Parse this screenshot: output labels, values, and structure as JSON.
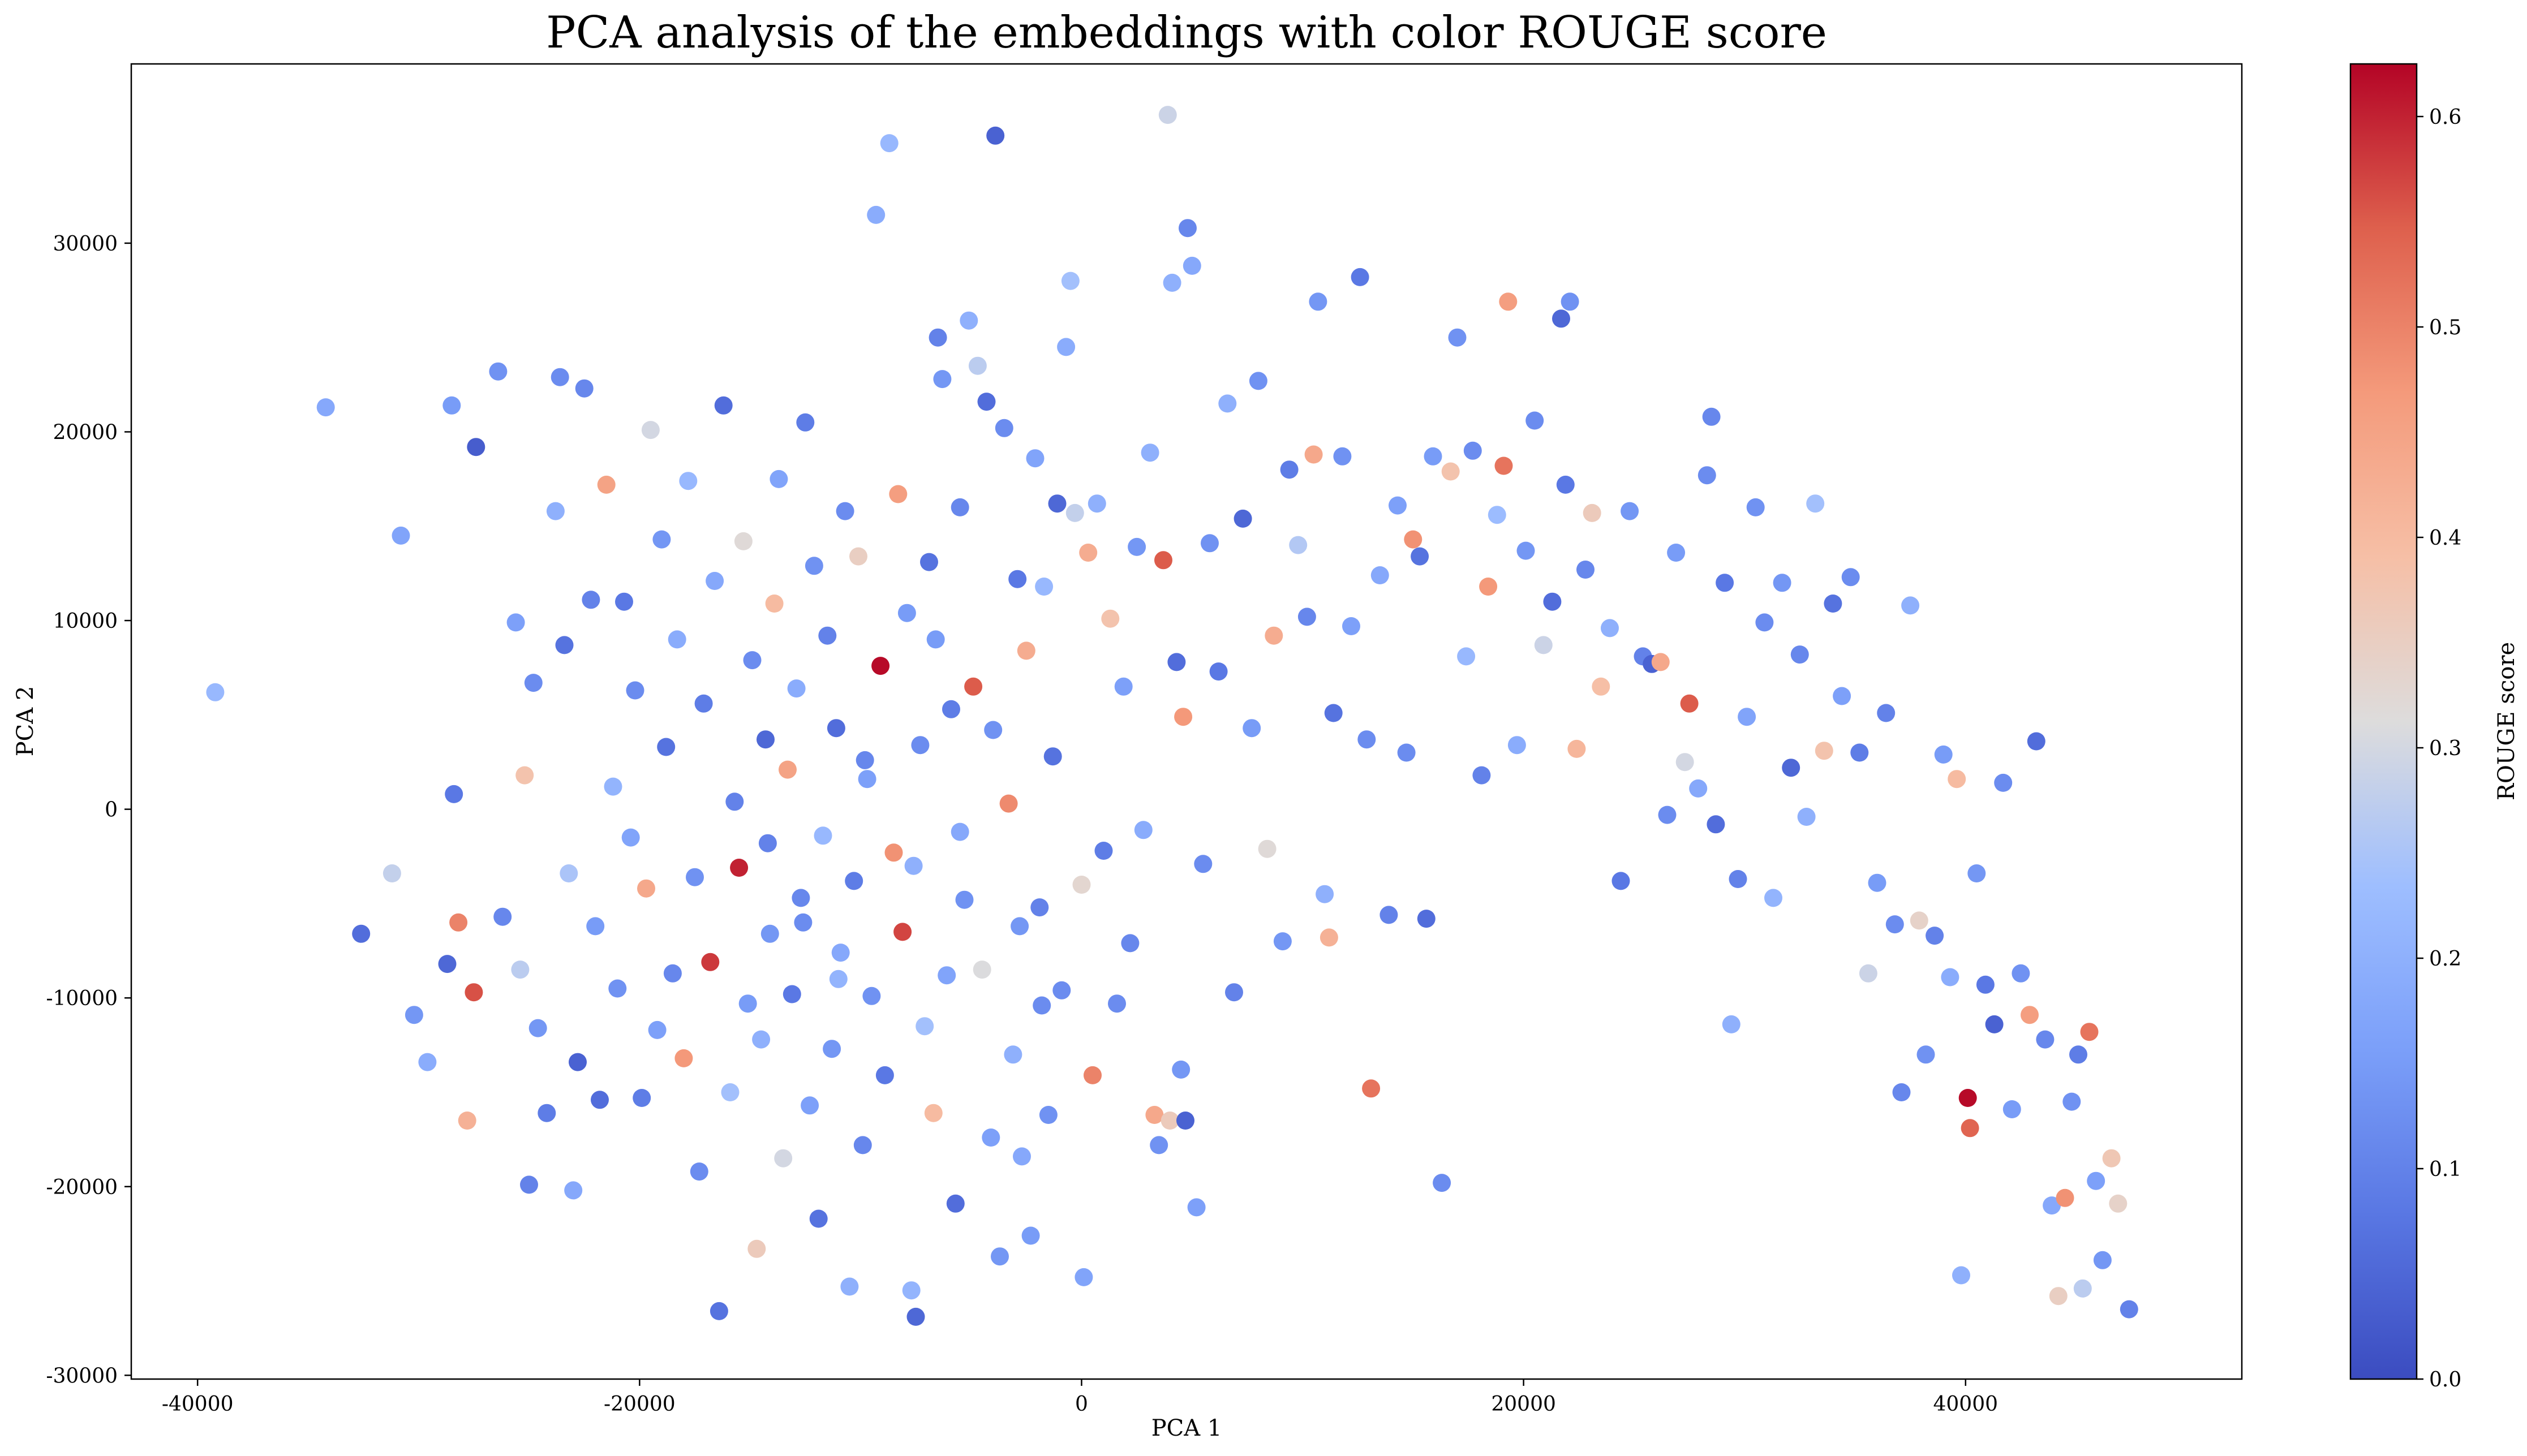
{
  "chart_data": {
    "type": "scatter",
    "title": "PCA analysis of the embeddings with color ROUGE score",
    "xlabel": "PCA 1",
    "ylabel": "PCA 2",
    "xlim": [
      -43000,
      52500
    ],
    "ylim": [
      -30200,
      39500
    ],
    "xticks": [
      -40000,
      -20000,
      0,
      20000,
      40000
    ],
    "xtick_labels": [
      "-40000",
      "-20000",
      "0",
      "20000",
      "40000"
    ],
    "yticks": [
      -30000,
      -20000,
      -10000,
      0,
      10000,
      20000,
      30000
    ],
    "ytick_labels": [
      "-30000",
      "-20000",
      "-10000",
      "0",
      "10000",
      "20000",
      "30000"
    ],
    "colorbar": {
      "label": "ROUGE score",
      "range": [
        0.0,
        0.625
      ],
      "colormap": "coolwarm",
      "ticks": [
        0.0,
        0.1,
        0.2,
        0.3,
        0.4,
        0.5,
        0.6
      ],
      "tick_labels": [
        "0.0",
        "0.1",
        "0.2",
        "0.3",
        "0.4",
        "0.5",
        "0.6"
      ]
    },
    "grid": false,
    "legend": "none",
    "points": [
      [
        -39200,
        6200,
        0.22
      ],
      [
        -34200,
        21300,
        0.18
      ],
      [
        -32600,
        -6600,
        0.06
      ],
      [
        -31200,
        -3400,
        0.28
      ],
      [
        -30800,
        14500,
        0.17
      ],
      [
        -30200,
        -10900,
        0.14
      ],
      [
        -29600,
        -13400,
        0.19
      ],
      [
        -28700,
        -8200,
        0.05
      ],
      [
        -28500,
        21400,
        0.15
      ],
      [
        -28400,
        800,
        0.08
      ],
      [
        -28200,
        -6000,
        0.5
      ],
      [
        -27800,
        -16500,
        0.42
      ],
      [
        -27500,
        -9700,
        0.56
      ],
      [
        -27400,
        19200,
        0.03
      ],
      [
        -26400,
        23200,
        0.13
      ],
      [
        -26200,
        -5700,
        0.11
      ],
      [
        -25600,
        9900,
        0.16
      ],
      [
        -25400,
        -8500,
        0.27
      ],
      [
        -25200,
        1800,
        0.38
      ],
      [
        -25000,
        -19900,
        0.1
      ],
      [
        -24800,
        6700,
        0.12
      ],
      [
        -24600,
        -11600,
        0.14
      ],
      [
        -24200,
        -16100,
        0.09
      ],
      [
        -23800,
        15800,
        0.2
      ],
      [
        -23600,
        22900,
        0.12
      ],
      [
        -23400,
        8700,
        0.07
      ],
      [
        -23200,
        -3400,
        0.25
      ],
      [
        -23000,
        -20200,
        0.18
      ],
      [
        -22800,
        -13400,
        0.04
      ],
      [
        -22500,
        22300,
        0.11
      ],
      [
        -22200,
        11100,
        0.1
      ],
      [
        -22000,
        -6200,
        0.15
      ],
      [
        -21800,
        -15400,
        0.06
      ],
      [
        -21500,
        17200,
        0.45
      ],
      [
        -21200,
        1200,
        0.21
      ],
      [
        -21000,
        -9500,
        0.13
      ],
      [
        -20700,
        11000,
        0.08
      ],
      [
        -20400,
        -1500,
        0.17
      ],
      [
        -20200,
        6300,
        0.12
      ],
      [
        -19900,
        -15300,
        0.09
      ],
      [
        -19700,
        -4200,
        0.44
      ],
      [
        -19500,
        20100,
        0.3
      ],
      [
        -19200,
        -11700,
        0.16
      ],
      [
        -19000,
        14300,
        0.14
      ],
      [
        -18800,
        3300,
        0.07
      ],
      [
        -18500,
        -8700,
        0.11
      ],
      [
        -18300,
        9000,
        0.19
      ],
      [
        -18000,
        -13200,
        0.47
      ],
      [
        -17800,
        17400,
        0.22
      ],
      [
        -17500,
        -3600,
        0.13
      ],
      [
        -17300,
        -19200,
        0.12
      ],
      [
        -17100,
        5600,
        0.09
      ],
      [
        -16800,
        -8100,
        0.58
      ],
      [
        -16600,
        12100,
        0.18
      ],
      [
        -16400,
        -26600,
        0.07
      ],
      [
        -16200,
        21400,
        0.06
      ],
      [
        -15900,
        -15000,
        0.24
      ],
      [
        -15700,
        400,
        0.1
      ],
      [
        -15500,
        -3100,
        0.6
      ],
      [
        -15300,
        14200,
        0.32
      ],
      [
        -15100,
        -10300,
        0.15
      ],
      [
        -14900,
        7900,
        0.12
      ],
      [
        -14700,
        -23300,
        0.36
      ],
      [
        -14500,
        -12200,
        0.2
      ],
      [
        -14300,
        3700,
        0.05
      ],
      [
        -14100,
        -6600,
        0.14
      ],
      [
        -13900,
        10900,
        0.4
      ],
      [
        -13700,
        17500,
        0.17
      ],
      [
        -13500,
        -18500,
        0.3
      ],
      [
        -13300,
        2100,
        0.45
      ],
      [
        -13100,
        -9800,
        0.08
      ],
      [
        -12900,
        6400,
        0.19
      ],
      [
        -12700,
        -4700,
        0.11
      ],
      [
        -12500,
        20500,
        0.09
      ],
      [
        -12300,
        -15700,
        0.16
      ],
      [
        -12100,
        12900,
        0.13
      ],
      [
        -11900,
        -21700,
        0.07
      ],
      [
        -11700,
        -1400,
        0.22
      ],
      [
        -11500,
        9200,
        0.1
      ],
      [
        -11300,
        -12700,
        0.14
      ],
      [
        -11100,
        4300,
        0.06
      ],
      [
        -10900,
        -7600,
        0.18
      ],
      [
        -10700,
        15800,
        0.12
      ],
      [
        -10500,
        -25300,
        0.2
      ],
      [
        -10300,
        -3800,
        0.09
      ],
      [
        -10100,
        13400,
        0.35
      ],
      [
        -9900,
        -17800,
        0.11
      ],
      [
        -9700,
        1600,
        0.16
      ],
      [
        -9500,
        -9900,
        0.13
      ],
      [
        -9300,
        31500,
        0.19
      ],
      [
        -9100,
        7600,
        0.62
      ],
      [
        -8900,
        -14100,
        0.08
      ],
      [
        -8700,
        35300,
        0.22
      ],
      [
        -8500,
        -2300,
        0.48
      ],
      [
        -8300,
        16700,
        0.46
      ],
      [
        -8100,
        -6500,
        0.57
      ],
      [
        -7900,
        10400,
        0.15
      ],
      [
        -7700,
        -25500,
        0.21
      ],
      [
        -7500,
        -26900,
        0.05
      ],
      [
        -7300,
        3400,
        0.12
      ],
      [
        -7100,
        -11500,
        0.24
      ],
      [
        -6900,
        13100,
        0.07
      ],
      [
        -6700,
        -16100,
        0.4
      ],
      [
        -6500,
        25000,
        0.1
      ],
      [
        -6300,
        22800,
        0.14
      ],
      [
        -6100,
        -8800,
        0.17
      ],
      [
        -5900,
        5300,
        0.09
      ],
      [
        -5700,
        -20900,
        0.06
      ],
      [
        -5500,
        16000,
        0.11
      ],
      [
        -5300,
        -4800,
        0.13
      ],
      [
        -5100,
        25900,
        0.2
      ],
      [
        -4900,
        6500,
        0.55
      ],
      [
        -4700,
        23500,
        0.27
      ],
      [
        -4500,
        -8500,
        0.31
      ],
      [
        -4300,
        21600,
        0.06
      ],
      [
        -4100,
        -17400,
        0.16
      ],
      [
        -3900,
        35700,
        0.04
      ],
      [
        -3700,
        -23700,
        0.14
      ],
      [
        -3500,
        20200,
        0.12
      ],
      [
        -3300,
        300,
        0.49
      ],
      [
        -3100,
        -13000,
        0.2
      ],
      [
        -2900,
        12200,
        0.08
      ],
      [
        -2700,
        -18400,
        0.18
      ],
      [
        -2500,
        8400,
        0.43
      ],
      [
        -2300,
        -22600,
        0.15
      ],
      [
        -2100,
        18600,
        0.17
      ],
      [
        -1900,
        -5200,
        0.1
      ],
      [
        -1700,
        11800,
        0.22
      ],
      [
        -1500,
        -16200,
        0.13
      ],
      [
        -1300,
        2800,
        0.07
      ],
      [
        -1100,
        16200,
        0.05
      ],
      [
        -900,
        -9600,
        0.12
      ],
      [
        -700,
        24500,
        0.19
      ],
      [
        -500,
        28000,
        0.24
      ],
      [
        -300,
        15700,
        0.28
      ],
      [
        0,
        -4000,
        0.33
      ],
      [
        100,
        -24800,
        0.17
      ],
      [
        300,
        13600,
        0.43
      ],
      [
        500,
        -14100,
        0.5
      ],
      [
        700,
        16200,
        0.2
      ],
      [
        1000,
        -2200,
        0.09
      ],
      [
        1300,
        10100,
        0.38
      ],
      [
        1600,
        -10300,
        0.12
      ],
      [
        1900,
        6500,
        0.16
      ],
      [
        2200,
        -7100,
        0.11
      ],
      [
        2500,
        13900,
        0.14
      ],
      [
        2800,
        -1100,
        0.19
      ],
      [
        3100,
        18900,
        0.2
      ],
      [
        3300,
        -16200,
        0.44
      ],
      [
        3500,
        -17800,
        0.13
      ],
      [
        3700,
        13200,
        0.55
      ],
      [
        3900,
        36800,
        0.29
      ],
      [
        4000,
        -16500,
        0.36
      ],
      [
        4100,
        27900,
        0.2
      ],
      [
        4300,
        7800,
        0.06
      ],
      [
        4500,
        -13800,
        0.14
      ],
      [
        4600,
        4900,
        0.47
      ],
      [
        4700,
        -16500,
        0.04
      ],
      [
        4800,
        30800,
        0.11
      ],
      [
        5000,
        28800,
        0.18
      ],
      [
        5200,
        -21100,
        0.16
      ],
      [
        5500,
        -2900,
        0.12
      ],
      [
        5800,
        14100,
        0.13
      ],
      [
        6200,
        7300,
        0.08
      ],
      [
        6600,
        21500,
        0.2
      ],
      [
        6900,
        -9700,
        0.1
      ],
      [
        7300,
        15400,
        0.05
      ],
      [
        7700,
        4300,
        0.15
      ],
      [
        8000,
        22700,
        0.13
      ],
      [
        8400,
        -2100,
        0.32
      ],
      [
        8700,
        9200,
        0.43
      ],
      [
        9100,
        -7000,
        0.14
      ],
      [
        9400,
        18000,
        0.09
      ],
      [
        9800,
        14000,
        0.26
      ],
      [
        10200,
        10200,
        0.11
      ],
      [
        10500,
        18800,
        0.44
      ],
      [
        10700,
        26900,
        0.14
      ],
      [
        11000,
        -4500,
        0.2
      ],
      [
        11200,
        -6800,
        0.42
      ],
      [
        11400,
        5100,
        0.07
      ],
      [
        11800,
        18700,
        0.13
      ],
      [
        12200,
        9700,
        0.16
      ],
      [
        12600,
        28200,
        0.08
      ],
      [
        12900,
        3700,
        0.12
      ],
      [
        13100,
        -14800,
        0.52
      ],
      [
        13500,
        12400,
        0.18
      ],
      [
        13900,
        -5600,
        0.1
      ],
      [
        14300,
        16100,
        0.16
      ],
      [
        14700,
        3000,
        0.12
      ],
      [
        15000,
        14300,
        0.48
      ],
      [
        15300,
        13400,
        0.07
      ],
      [
        15600,
        -5800,
        0.06
      ],
      [
        15900,
        18700,
        0.15
      ],
      [
        16300,
        -19800,
        0.12
      ],
      [
        16700,
        17900,
        0.38
      ],
      [
        17000,
        25000,
        0.13
      ],
      [
        17400,
        8100,
        0.22
      ],
      [
        17700,
        19000,
        0.12
      ],
      [
        18100,
        1800,
        0.1
      ],
      [
        18400,
        11800,
        0.47
      ],
      [
        18800,
        15600,
        0.23
      ],
      [
        19100,
        18200,
        0.52
      ],
      [
        19300,
        26900,
        0.46
      ],
      [
        19700,
        3400,
        0.19
      ],
      [
        20100,
        13700,
        0.14
      ],
      [
        20500,
        20600,
        0.12
      ],
      [
        20900,
        8700,
        0.29
      ],
      [
        21300,
        11000,
        0.06
      ],
      [
        21700,
        26000,
        0.05
      ],
      [
        21900,
        17200,
        0.08
      ],
      [
        22100,
        26900,
        0.13
      ],
      [
        22400,
        3200,
        0.41
      ],
      [
        22800,
        12700,
        0.11
      ],
      [
        23100,
        15700,
        0.36
      ],
      [
        23500,
        6500,
        0.39
      ],
      [
        23900,
        9600,
        0.2
      ],
      [
        24400,
        -3800,
        0.08
      ],
      [
        24800,
        15800,
        0.14
      ],
      [
        25400,
        8100,
        0.1
      ],
      [
        25800,
        7700,
        0.04
      ],
      [
        26200,
        7800,
        0.44
      ],
      [
        26500,
        -300,
        0.12
      ],
      [
        26900,
        13600,
        0.15
      ],
      [
        27300,
        2500,
        0.3
      ],
      [
        27500,
        5600,
        0.55
      ],
      [
        27900,
        1100,
        0.18
      ],
      [
        28300,
        17700,
        0.12
      ],
      [
        28500,
        20800,
        0.11
      ],
      [
        28700,
        -800,
        0.06
      ],
      [
        29100,
        12000,
        0.08
      ],
      [
        29400,
        -11400,
        0.2
      ],
      [
        29700,
        -3700,
        0.1
      ],
      [
        30100,
        4900,
        0.17
      ],
      [
        30500,
        16000,
        0.13
      ],
      [
        30900,
        9900,
        0.12
      ],
      [
        31300,
        -4700,
        0.21
      ],
      [
        31700,
        12000,
        0.14
      ],
      [
        32100,
        2200,
        0.05
      ],
      [
        32500,
        8200,
        0.11
      ],
      [
        32800,
        -400,
        0.2
      ],
      [
        33200,
        16200,
        0.24
      ],
      [
        33600,
        3100,
        0.38
      ],
      [
        34000,
        10900,
        0.07
      ],
      [
        34400,
        6000,
        0.16
      ],
      [
        34800,
        12300,
        0.12
      ],
      [
        35200,
        3000,
        0.09
      ],
      [
        35600,
        -8700,
        0.29
      ],
      [
        36000,
        -3900,
        0.15
      ],
      [
        36400,
        5100,
        0.1
      ],
      [
        36800,
        -6100,
        0.12
      ],
      [
        37100,
        -15000,
        0.11
      ],
      [
        37500,
        10800,
        0.2
      ],
      [
        37900,
        -5900,
        0.34
      ],
      [
        38200,
        -13000,
        0.13
      ],
      [
        38600,
        -6700,
        0.1
      ],
      [
        39000,
        2900,
        0.15
      ],
      [
        39300,
        -8900,
        0.19
      ],
      [
        39600,
        1600,
        0.4
      ],
      [
        39800,
        -24700,
        0.2
      ],
      [
        40100,
        -15300,
        0.62
      ],
      [
        40200,
        -16900,
        0.54
      ],
      [
        40500,
        -3400,
        0.14
      ],
      [
        40900,
        -9300,
        0.08
      ],
      [
        41300,
        -11400,
        0.04
      ],
      [
        41700,
        1400,
        0.12
      ],
      [
        42100,
        -15900,
        0.15
      ],
      [
        42500,
        -8700,
        0.13
      ],
      [
        42900,
        -10900,
        0.46
      ],
      [
        43200,
        3600,
        0.06
      ],
      [
        43600,
        -12200,
        0.11
      ],
      [
        43900,
        -21000,
        0.18
      ],
      [
        44200,
        -25800,
        0.35
      ],
      [
        44500,
        -20600,
        0.48
      ],
      [
        44800,
        -15500,
        0.13
      ],
      [
        45100,
        -13000,
        0.09
      ],
      [
        45300,
        -25400,
        0.27
      ],
      [
        45600,
        -11800,
        0.52
      ],
      [
        45900,
        -19700,
        0.16
      ],
      [
        46200,
        -23900,
        0.14
      ],
      [
        46600,
        -18500,
        0.37
      ],
      [
        46900,
        -20900,
        0.34
      ],
      [
        47400,
        -26500,
        0.1
      ],
      [
        -12600,
        -6000,
        0.12
      ],
      [
        -7600,
        -3000,
        0.2
      ],
      [
        -2800,
        -6200,
        0.14
      ],
      [
        -9800,
        2600,
        0.11
      ],
      [
        -5500,
        -1200,
        0.18
      ],
      [
        -14200,
        -1800,
        0.1
      ],
      [
        -4000,
        4200,
        0.13
      ],
      [
        -11000,
        -9000,
        0.21
      ],
      [
        -6600,
        9000,
        0.15
      ],
      [
        -1800,
        -10400,
        0.12
      ]
    ]
  }
}
